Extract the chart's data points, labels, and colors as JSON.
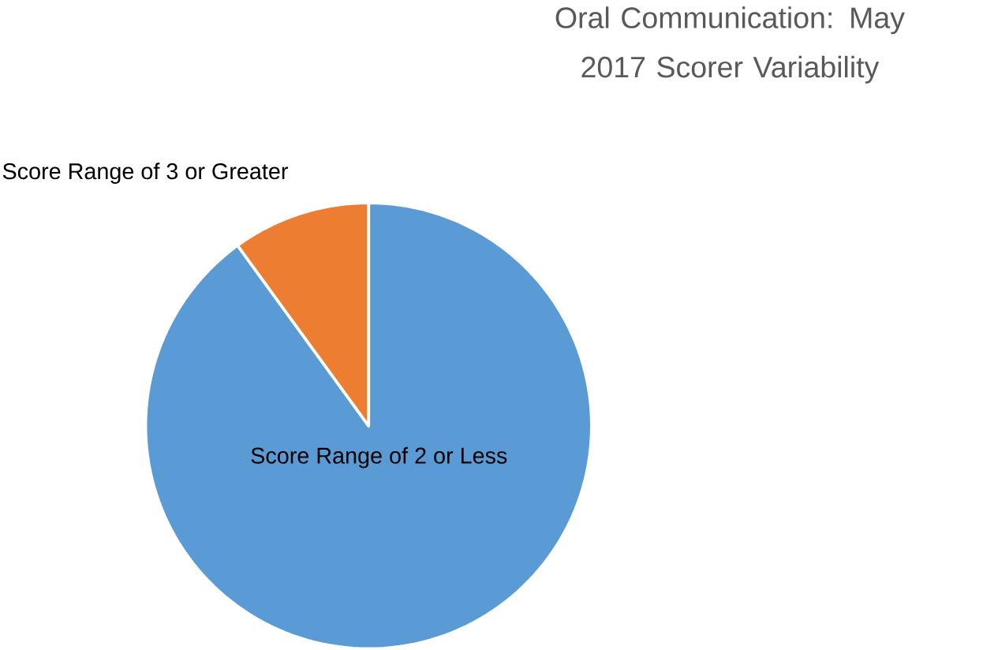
{
  "chart_data": {
    "type": "pie",
    "title": "Oral Communication: May 2017 Scorer Variability",
    "categories": [
      "Score Range of 2 or Less",
      "Score Range of 3 or Greater"
    ],
    "values": [
      90,
      10
    ],
    "colors": [
      "#5b9bd5",
      "#ed7d31"
    ]
  }
}
